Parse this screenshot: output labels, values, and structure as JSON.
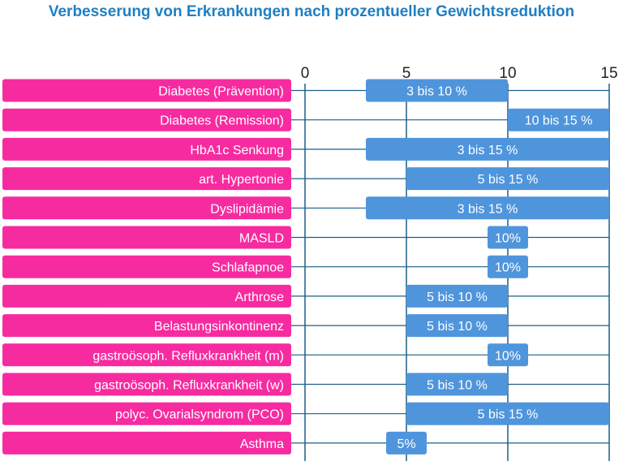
{
  "chart_data": {
    "type": "bar",
    "orientation": "horizontal",
    "chart_style": "floating-range-bar",
    "title": "Verbesserung von Erkrankungen nach prozentueller Gewichtsreduktion",
    "xlim": [
      0,
      15
    ],
    "x_ticks": [
      0,
      5,
      10,
      15
    ],
    "tick_position": "top",
    "grid": true,
    "categories": [
      "Diabetes (Prävention)",
      "Diabetes (Remission)",
      "HbA1c Senkung",
      "art. Hypertonie",
      "Dyslipidämie",
      "MASLD",
      "Schlafapnoe",
      "Arthrose",
      "Belastungsinkontinenz",
      "gastroösoph. Refluxkrankheit (m)",
      "gastroösoph. Refluxkrankheit (w)",
      "polyc. Ovarialsyndrom (PCO)",
      "Asthma"
    ],
    "ranges": [
      {
        "start": 3,
        "end": 10,
        "label": "3 bis 10 %"
      },
      {
        "start": 10,
        "end": 15,
        "label": "10 bis 15 %"
      },
      {
        "start": 3,
        "end": 15,
        "label": "3 bis 15 %"
      },
      {
        "start": 5,
        "end": 15,
        "label": "5 bis 15 %"
      },
      {
        "start": 3,
        "end": 15,
        "label": "3 bis 15 %"
      },
      {
        "start": 9,
        "end": 11,
        "label": "10%"
      },
      {
        "start": 9,
        "end": 11,
        "label": "10%"
      },
      {
        "start": 5,
        "end": 10,
        "label": "5 bis 10 %"
      },
      {
        "start": 5,
        "end": 10,
        "label": "5 bis 10 %"
      },
      {
        "start": 9,
        "end": 11,
        "label": "10%"
      },
      {
        "start": 5,
        "end": 10,
        "label": "5 bis 10 %"
      },
      {
        "start": 5,
        "end": 15,
        "label": "5 bis 15 %"
      },
      {
        "start": 4,
        "end": 6,
        "label": "5%"
      }
    ],
    "colors": {
      "title": "#1f7fc1",
      "category_bar": "#f72ba0",
      "range_bar": "#4f95dc",
      "grid": "#1c5f86"
    }
  }
}
